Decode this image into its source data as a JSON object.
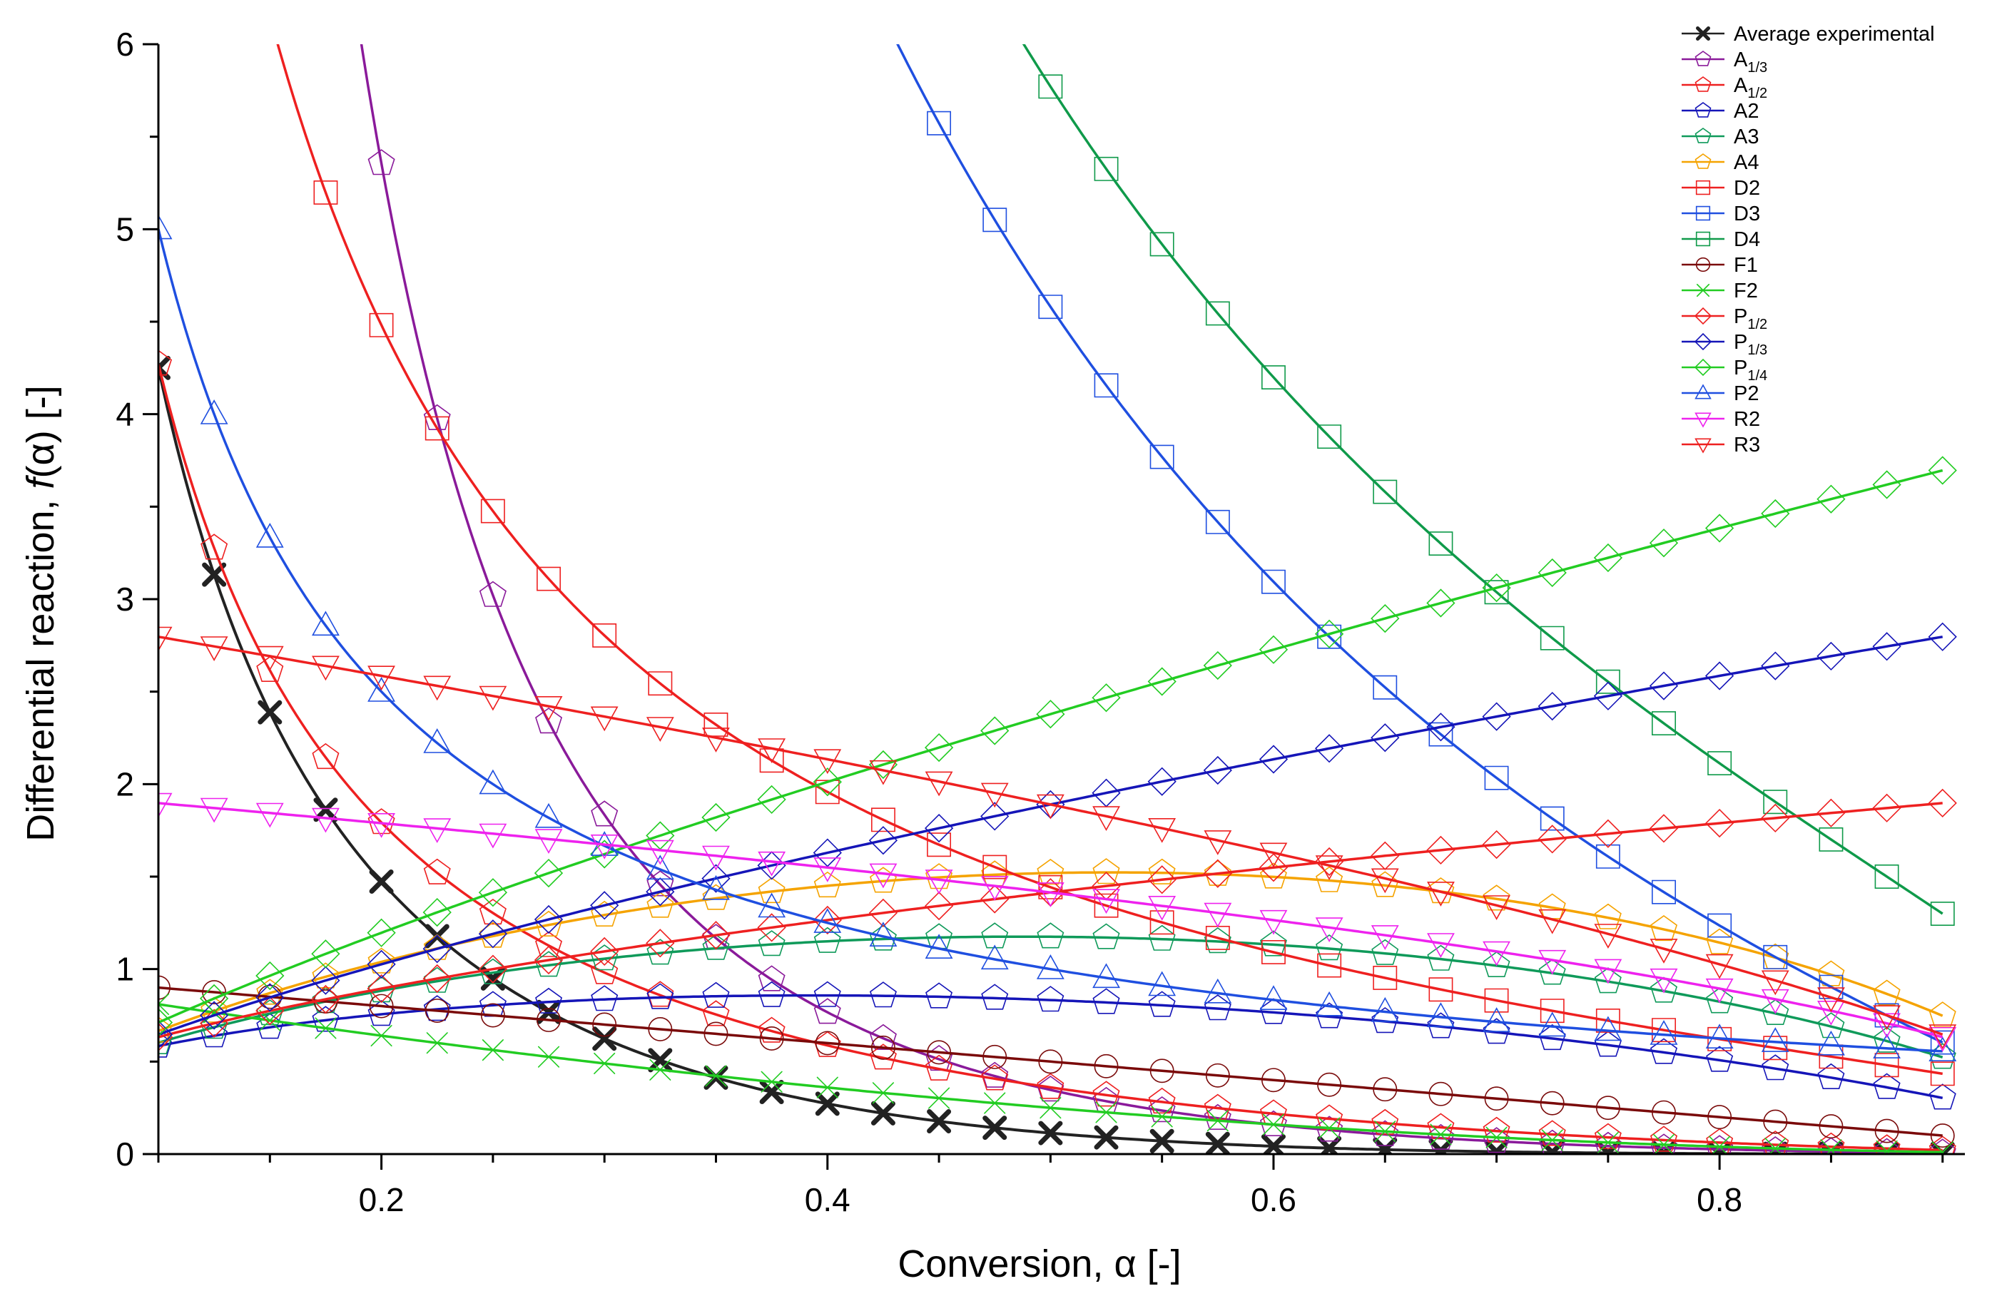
{
  "chart_data": {
    "type": "line",
    "title": "",
    "xlabel": "Conversion, α [-]",
    "ylabel_prefix": "Differential reaction, ",
    "ylabel_func": "f",
    "ylabel_suffix": "(α) [-]",
    "xlim": [
      0.1,
      0.91
    ],
    "ylim": [
      0,
      6
    ],
    "xticks": [
      0.2,
      0.4,
      0.6,
      0.8
    ],
    "xtick_labels": [
      "0.2",
      "0.4",
      "0.6",
      "0.8"
    ],
    "yticks": [
      0,
      1,
      2,
      3,
      4,
      5,
      6
    ],
    "ytick_labels": [
      "0",
      "1",
      "2",
      "3",
      "4",
      "5",
      "6"
    ],
    "grid": false,
    "legend_position": "top-right",
    "x": [
      0.1,
      0.125,
      0.15,
      0.175,
      0.2,
      0.225,
      0.25,
      0.275,
      0.3,
      0.325,
      0.35,
      0.375,
      0.4,
      0.425,
      0.45,
      0.475,
      0.5,
      0.525,
      0.55,
      0.575,
      0.6,
      0.625,
      0.65,
      0.675,
      0.7,
      0.725,
      0.75,
      0.775,
      0.8,
      0.825,
      0.85,
      0.875,
      0.9
    ],
    "series": [
      {
        "name": "Average experimental",
        "base": "Average experimental",
        "sub": "",
        "color": "#222222",
        "marker": "x",
        "model": "AE"
      },
      {
        "name": "A1/3",
        "base": "A",
        "sub": "1/3",
        "color": "#8a1a9a",
        "marker": "pentagon",
        "model": "A1/3"
      },
      {
        "name": "A1/2",
        "base": "A",
        "sub": "1/2",
        "color": "#ee2020",
        "marker": "pentagon",
        "model": "A1/2"
      },
      {
        "name": "A2",
        "base": "A2",
        "sub": "",
        "color": "#1515b8",
        "marker": "pentagon",
        "model": "A2"
      },
      {
        "name": "A3",
        "base": "A3",
        "sub": "",
        "color": "#0f9a5a",
        "marker": "pentagon",
        "model": "A3"
      },
      {
        "name": "A4",
        "base": "A4",
        "sub": "",
        "color": "#f5a300",
        "marker": "pentagon",
        "model": "A4"
      },
      {
        "name": "D2",
        "base": "D2",
        "sub": "",
        "color": "#ee2020",
        "marker": "square",
        "model": "D2"
      },
      {
        "name": "D3",
        "base": "D3",
        "sub": "",
        "color": "#1f4fe0",
        "marker": "square",
        "model": "D3"
      },
      {
        "name": "D4",
        "base": "D4",
        "sub": "",
        "color": "#0f9a4a",
        "marker": "square",
        "model": "D4"
      },
      {
        "name": "F1",
        "base": "F1",
        "sub": "",
        "color": "#7a0a0a",
        "marker": "circle",
        "model": "F1"
      },
      {
        "name": "F2",
        "base": "F2",
        "sub": "",
        "color": "#22cc22",
        "marker": "x",
        "model": "F2"
      },
      {
        "name": "P1/2",
        "base": "P",
        "sub": "1/2",
        "color": "#ee2020",
        "marker": "diamond",
        "model": "P1/2"
      },
      {
        "name": "P1/3",
        "base": "P",
        "sub": "1/3",
        "color": "#1515b8",
        "marker": "diamond",
        "model": "P1/3"
      },
      {
        "name": "P1/4",
        "base": "P",
        "sub": "1/4",
        "color": "#22cc22",
        "marker": "diamond",
        "model": "P1/4"
      },
      {
        "name": "P2",
        "base": "P2",
        "sub": "",
        "color": "#1f4fe0",
        "marker": "triangle-up",
        "model": "P2"
      },
      {
        "name": "R2",
        "base": "R2",
        "sub": "",
        "color": "#ee22ee",
        "marker": "triangle-down",
        "model": "R2"
      },
      {
        "name": "R3",
        "base": "R3",
        "sub": "",
        "color": "#ee2020",
        "marker": "triangle-down",
        "model": "R3"
      }
    ]
  }
}
